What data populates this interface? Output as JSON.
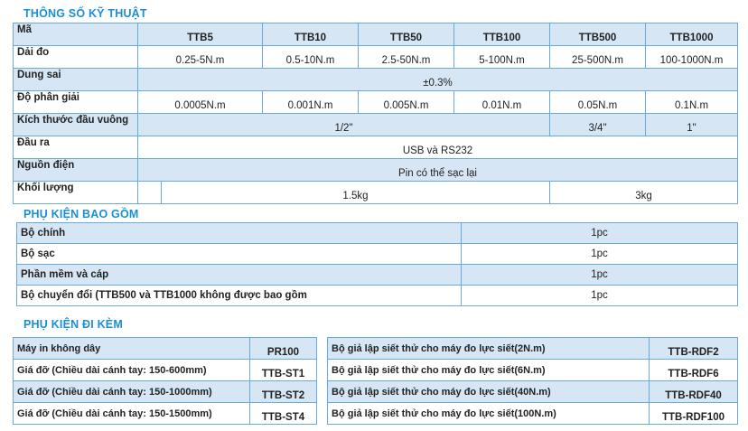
{
  "specs": {
    "title": "THÔNG SỐ KỸ THUẬT",
    "header_label": "Mã",
    "models": [
      "TTB5",
      "TTB10",
      "TTB50",
      "TTB100",
      "TTB500",
      "TTB1000"
    ],
    "range": {
      "label": "Dải đo",
      "values": [
        "0.25-5N.m",
        "0.5-10N.m",
        "2.5-50N.m",
        "5-100N.m",
        "25-500N.m",
        "100-1000N.m"
      ]
    },
    "tolerance": {
      "label": "Dung sai",
      "value": "±0.3%"
    },
    "resolution": {
      "label": "Độ phân giải",
      "values": [
        "0.0005N.m",
        "0.001N.m",
        "0.005N.m",
        "0.01N.m",
        "0.05N.m",
        "0.1N.m"
      ]
    },
    "square_drive": {
      "label": "Kích thước đầu vuông",
      "small": "1/2\"",
      "mid": "3/4\"",
      "large": "1\""
    },
    "output": {
      "label": "Đầu ra",
      "value": "USB và RS232"
    },
    "power": {
      "label": "Nguồn điện",
      "value": "Pin có thể sạc lại"
    },
    "weight": {
      "label": "Khối lượng",
      "small": "1.5kg",
      "large": "3kg"
    }
  },
  "included": {
    "title": "PHỤ KIỆN BAO GỒM",
    "items": [
      {
        "name": "Bộ chính",
        "qty": "1pc"
      },
      {
        "name": "Bộ sạc",
        "qty": "1pc"
      },
      {
        "name": "Phần mềm và cáp",
        "qty": "1pc"
      },
      {
        "name": "Bộ chuyển đổi (TTB500 và TTB1000 không được bao gồm",
        "qty": "1pc"
      }
    ]
  },
  "optional": {
    "title": "PHỤ KIỆN ĐI KÈM",
    "left": [
      {
        "name": "Máy in không dây",
        "code": "PR100"
      },
      {
        "name": "Giá đỡ (Chiều dài cánh tay: 150-600mm)",
        "code": "TTB-ST1"
      },
      {
        "name": "Giá đỡ (Chiều dài cánh tay: 150-1000mm)",
        "code": "TTB-ST2"
      },
      {
        "name": "Giá đỡ (Chiều dài cánh tay: 150-1500mm)",
        "code": "TTB-ST4"
      }
    ],
    "right": [
      {
        "name": "Bộ giả lập siết thử cho máy đo lực siết(2N.m)",
        "code": "TTB-RDF2"
      },
      {
        "name": "Bộ giả lập siết thử cho máy đo lực siết(6N.m)",
        "code": "TTB-RDF6"
      },
      {
        "name": "Bộ giả lập siết thử cho máy đo lực siết(40N.m)",
        "code": "TTB-RDF40"
      },
      {
        "name": "Bộ giả lập siết thử cho máy đo lực siết(100N.m)",
        "code": "TTB-RDF100"
      }
    ]
  }
}
